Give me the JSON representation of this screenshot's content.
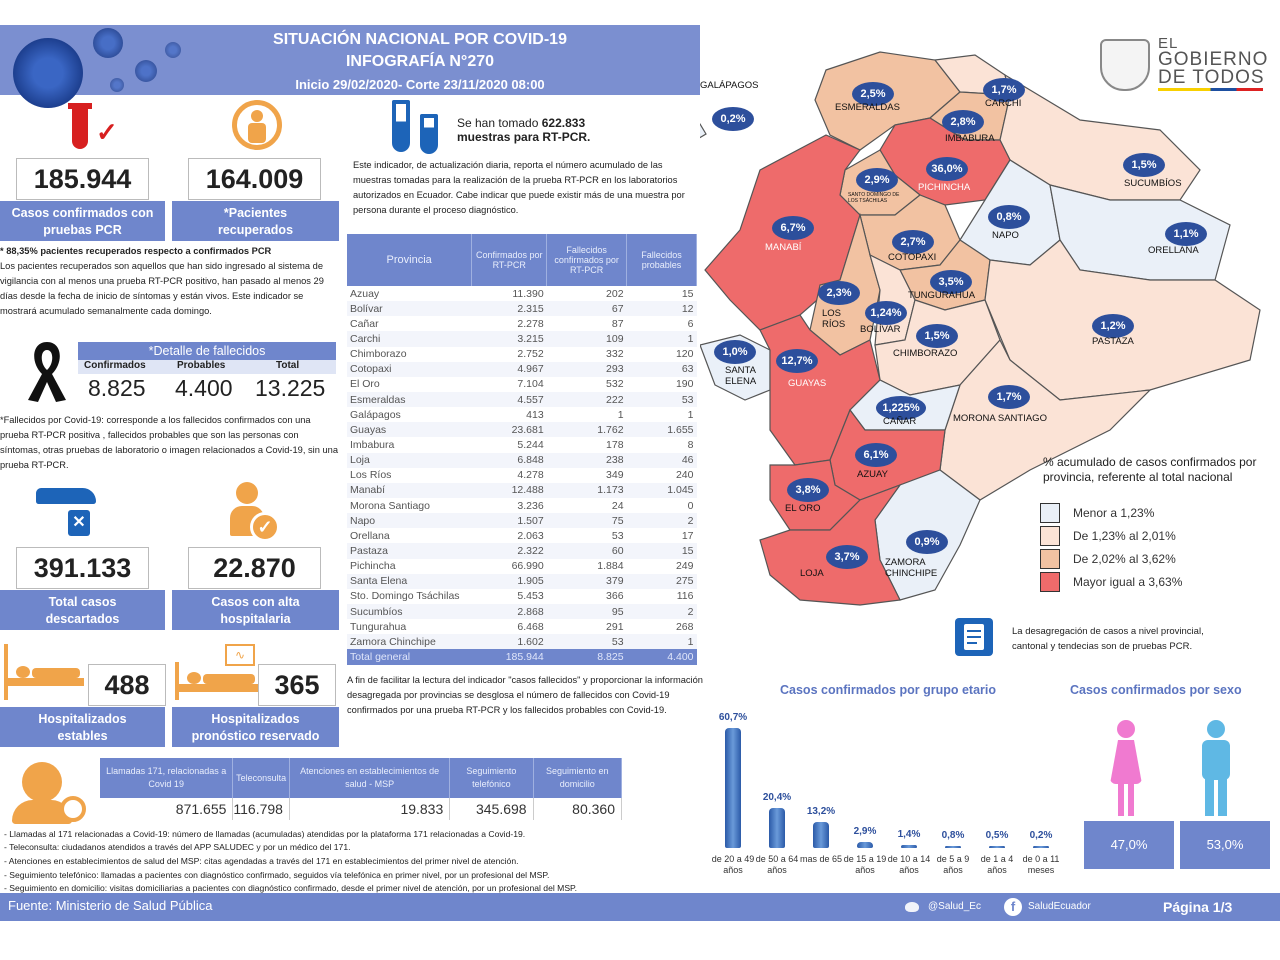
{
  "header": {
    "title": "SITUACIÓN NACIONAL POR  COVID-19",
    "subtitle": "INFOGRAFÍA N°270",
    "period": "Inicio 29/02/2020- Corte 23/11/2020 08:00"
  },
  "brand": {
    "line1": "EL",
    "line2": "GOBIERNO",
    "line3": "DE TODOS"
  },
  "stats": {
    "confirmed": {
      "value": "185.944",
      "label1": "Casos confirmados con",
      "label2": "pruebas PCR"
    },
    "recovered": {
      "value": "164.009",
      "label1": "*Pacientes",
      "label2": "recuperados"
    },
    "recovered_note": "* 88,35% pacientes recuperados respecto a confirmados PCR",
    "recovered_def": "Los pacientes recuperados son aquellos que han sido ingresado al sistema de vigilancia con al menos una prueba RT-PCR positivo, han pasado al menos 29 días desde la fecha de inicio de síntomas y están vivos. Este indicador se mostrará acumulado semanalmente cada domingo.",
    "deaths_title": "*Detalle de fallecidos",
    "deaths_h1": "Confirmados",
    "deaths_h2": "Probables",
    "deaths_h3": "Total",
    "deaths_v1": "8.825",
    "deaths_v2": "4.400",
    "deaths_v3": "13.225",
    "deaths_def": "*Fallecidos por Covid-19: corresponde a los fallecidos confirmados con una prueba RT-PCR positiva , fallecidos probables que son las personas con síntomas, otras pruebas de laboratorio o imagen relacionados a Covid-19, sin una prueba RT-PCR.",
    "discarded": {
      "value": "391.133",
      "label1": "Total casos",
      "label2": "descartados"
    },
    "discharged": {
      "value": "22.870",
      "label1": "Casos con alta",
      "label2": "hospitalaria"
    },
    "hosp_stable": {
      "value": "488",
      "label1": "Hospitalizados",
      "label2": "estables"
    },
    "hosp_reserved": {
      "value": "365",
      "label1": "Hospitalizados",
      "label2": "pronóstico reservado"
    }
  },
  "samples": {
    "text1": "Se han tomado ",
    "value": "622.833",
    "text2": "muestras  para RT-PCR.",
    "desc": "Este indicador, de actualización diaria, reporta el número acumulado de las muestras tomadas para la realización de la prueba RT-PCR en los laboratorios autorizados en Ecuador. Cabe indicar que puede existir más de una muestra por persona durante el proceso diagnóstico."
  },
  "province_table": {
    "headers": [
      "Provincia",
      "Confirmados por RT-PCR",
      "Fallecidos confirmados por RT-PCR",
      "Fallecidos probables"
    ],
    "rows": [
      [
        "Azuay",
        "11.390",
        "202",
        "15"
      ],
      [
        "Bolívar",
        "2.315",
        "67",
        "12"
      ],
      [
        "Cañar",
        "2.278",
        "87",
        "6"
      ],
      [
        "Carchi",
        "3.215",
        "109",
        "1"
      ],
      [
        "Chimborazo",
        "2.752",
        "332",
        "120"
      ],
      [
        "Cotopaxi",
        "4.967",
        "293",
        "63"
      ],
      [
        "El Oro",
        "7.104",
        "532",
        "190"
      ],
      [
        "Esmeraldas",
        "4.557",
        "222",
        "53"
      ],
      [
        "Galápagos",
        "413",
        "1",
        "1"
      ],
      [
        "Guayas",
        "23.681",
        "1.762",
        "1.655"
      ],
      [
        "Imbabura",
        "5.244",
        "178",
        "8"
      ],
      [
        "Loja",
        "6.848",
        "238",
        "46"
      ],
      [
        "Los Ríos",
        "4.278",
        "349",
        "240"
      ],
      [
        "Manabí",
        "12.488",
        "1.173",
        "1.045"
      ],
      [
        "Morona Santiago",
        "3.236",
        "24",
        "0"
      ],
      [
        "Napo",
        "1.507",
        "75",
        "2"
      ],
      [
        "Orellana",
        "2.063",
        "53",
        "17"
      ],
      [
        "Pastaza",
        "2.322",
        "60",
        "15"
      ],
      [
        "Pichincha",
        "66.990",
        "1.884",
        "249"
      ],
      [
        "Santa Elena",
        "1.905",
        "379",
        "275"
      ],
      [
        "Sto. Domingo Tsáchilas",
        "5.453",
        "366",
        "116"
      ],
      [
        "Sucumbíos",
        "2.868",
        "95",
        "2"
      ],
      [
        "Tungurahua",
        "6.468",
        "291",
        "268"
      ],
      [
        "Zamora Chinchipe",
        "1.602",
        "53",
        "1"
      ]
    ],
    "total": [
      "Total general",
      "185.944",
      "8.825",
      "4.400"
    ],
    "footnote": "A fin de facilitar la lectura del indicador \"casos fallecidos\" y proporcionar la información desagregada por provincias se desglosa el número de fallecidos con Covid-19 confirmados por una prueba RT-PCR y los fallecidos probables con Covid-19."
  },
  "calls": {
    "headers": [
      "Llamadas 171, relacionadas a Covid 19",
      "Teleconsulta",
      "Atenciones en establecimientos de salud - MSP",
      "Seguimiento telefónico",
      "Seguimiento en domicilio"
    ],
    "values": [
      "871.655",
      "116.798",
      "19.833",
      "345.698",
      "80.360"
    ],
    "notes": [
      "- Llamadas al 171 relacionadas a Covid-19: número de llamadas (acumuladas) atendidas por la plataforma 171 relacionadas a Covid-19.",
      "- Teleconsulta: ciudadanos atendidos a través del APP SALUDEC y por un médico del 171.",
      "- Atenciones en establecimientos de salud del MSP:  citas agendadas a través del 171 en establecimientos del primer nivel de atención.",
      "- Seguimiento telefónico: llamadas a pacientes con diagnóstico confirmado, seguidos vía telefónica en primer nivel, por un profesional del MSP.",
      "- Seguimiento en domicilio: visitas domiciliarias a pacientes con diagnóstico confirmado, desde el primer nivel de atención, por un profesional del MSP."
    ]
  },
  "map": {
    "provinces": [
      {
        "name": "GALÁPAGOS",
        "pct": "0,2%"
      },
      {
        "name": "ESMERALDAS",
        "pct": "2,5%"
      },
      {
        "name": "CARCHI",
        "pct": "1,7%"
      },
      {
        "name": "IMBABURA",
        "pct": "2,8%"
      },
      {
        "name": "PICHINCHA",
        "pct": "36,0%"
      },
      {
        "name": "SANTO DOMINGO DE LOS TSÁCHILAS",
        "pct": "2,9%"
      },
      {
        "name": "SUCUMBÍOS",
        "pct": "1,5%"
      },
      {
        "name": "MANABÍ",
        "pct": "6,7%"
      },
      {
        "name": "NAPO",
        "pct": "0,8%"
      },
      {
        "name": "ORELLANA",
        "pct": "1,1%"
      },
      {
        "name": "COTOPAXI",
        "pct": "2,7%"
      },
      {
        "name": "TUNGURAHUA",
        "pct": "3,5%"
      },
      {
        "name": "LOS RÍOS",
        "pct": "2,3%"
      },
      {
        "name": "BOLÍVAR",
        "pct": "1,24%"
      },
      {
        "name": "PASTAZA",
        "pct": "1,2%"
      },
      {
        "name": "CHIMBORAZO",
        "pct": "1,5%"
      },
      {
        "name": "SANTA ELENA",
        "pct": "1,0%"
      },
      {
        "name": "GUAYAS",
        "pct": "12,7%"
      },
      {
        "name": "MORONA SANTIAGO",
        "pct": "1,7%"
      },
      {
        "name": "CAÑAR",
        "pct": "1,225%"
      },
      {
        "name": "AZUAY",
        "pct": "6,1%"
      },
      {
        "name": "EL ORO",
        "pct": "3,8%"
      },
      {
        "name": "ZAMORA CHINCHIPE",
        "pct": "0,9%"
      },
      {
        "name": "LOJA",
        "pct": "3,7%"
      }
    ],
    "legend_title": "% acumulado de casos confirmados por provincia, referente al total nacional",
    "legend": [
      {
        "label": "Menor a 1,23%",
        "color": "#eaf0f8"
      },
      {
        "label": "De 1,23% al 2,01%",
        "color": "#fbe3d6"
      },
      {
        "label": "De 2,02% al 3,62%",
        "color": "#f2c2a2"
      },
      {
        "label": "Mayor igual a 3,63%",
        "color": "#ee6b6b"
      }
    ],
    "note": "La desagregación de casos a nivel provincial, cantonal y tendecias son de pruebas PCR."
  },
  "chart_data": [
    {
      "type": "bar",
      "title": "Casos confirmados por grupo etario",
      "categories": [
        "de 20 a 49 años",
        "de 50 a 64 años",
        "mas de 65",
        "de 15 a 19 años",
        "de 10 a 14 años",
        "de 5 a 9 años",
        "de 1 a 4 años",
        "de 0 a 11 meses"
      ],
      "values": [
        60.7,
        20.4,
        13.2,
        2.9,
        1.4,
        0.8,
        0.5,
        0.2
      ],
      "labels": [
        "60,7%",
        "20,4%",
        "13,2%",
        "2,9%",
        "1,4%",
        "0,8%",
        "0,5%",
        "0,2%"
      ],
      "ylim": [
        0,
        65
      ]
    },
    {
      "type": "bar",
      "title": "Casos confirmados por sexo",
      "categories": [
        "Mujeres",
        "Hombres"
      ],
      "values": [
        47.0,
        53.0
      ],
      "labels": [
        "47,0%",
        "53,0%"
      ]
    }
  ],
  "footer": {
    "source": "Fuente: Ministerio de Salud Pública",
    "twitter": "@Salud_Ec",
    "facebook": "SaludEcuador",
    "page": "Página 1/3"
  },
  "colors": {
    "accent": "#6f86cc",
    "pill": "#2d4f9c",
    "red": "#ee6b6b"
  }
}
